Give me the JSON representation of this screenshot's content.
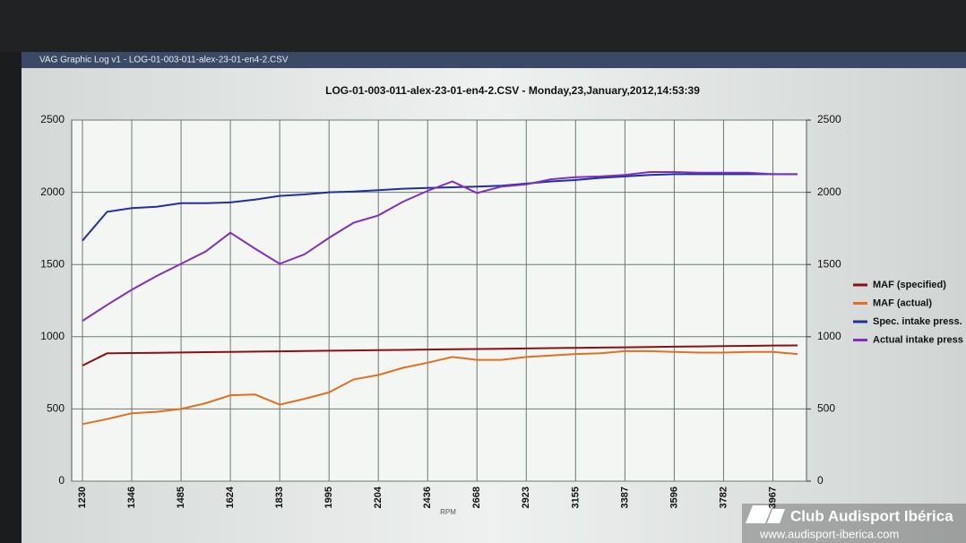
{
  "window_title": "VAG Graphic Log  v1 -  LOG-01-003-011-alex-23-01-en4-2.CSV",
  "watermark": [
    "Club Audisport Ibérica",
    "www.audisport-iberica.com"
  ],
  "chart_data": {
    "type": "line",
    "title": "LOG-01-003-011-alex-23-01-en4-2.CSV - Monday,23,January,2012,14:53:39",
    "x_label": "RPM",
    "categories": [
      "1230",
      null,
      "1346",
      null,
      "1485",
      null,
      "1624",
      null,
      "1833",
      null,
      "1995",
      null,
      "2204",
      null,
      "2436",
      null,
      "2668",
      null,
      "2923",
      null,
      "3155",
      null,
      "3387",
      null,
      "3596",
      null,
      "3782",
      null,
      "3967",
      null
    ],
    "series": [
      {
        "name": "MAF (specified)",
        "color": "#8b1010",
        "values": [
          800,
          885,
          887,
          889,
          891,
          893,
          895,
          897,
          899,
          901,
          903,
          905,
          907,
          909,
          911,
          913,
          915,
          917,
          919,
          921,
          923,
          925,
          927,
          929,
          931,
          933,
          935,
          937,
          939,
          940
        ]
      },
      {
        "name": "MAF (actual)",
        "color": "#e07020",
        "values": [
          395,
          430,
          470,
          480,
          500,
          540,
          595,
          600,
          530,
          570,
          615,
          705,
          735,
          785,
          820,
          860,
          840,
          840,
          860,
          870,
          880,
          885,
          900,
          900,
          895,
          890,
          890,
          895,
          895,
          880
        ]
      },
      {
        "name": "Spec. intake press.",
        "color": "#2030a0",
        "values": [
          1665,
          1865,
          1890,
          1900,
          1925,
          1925,
          1930,
          1950,
          1975,
          1985,
          2000,
          2005,
          2015,
          2025,
          2030,
          2035,
          2040,
          2045,
          2060,
          2075,
          2085,
          2100,
          2110,
          2120,
          2125,
          2125,
          2125,
          2125,
          2125,
          2125
        ]
      },
      {
        "name": "Actual intake press",
        "color": "#8030c0",
        "values": [
          1110,
          1220,
          1325,
          1420,
          1505,
          1590,
          1720,
          1610,
          1505,
          1570,
          1685,
          1790,
          1840,
          1935,
          2010,
          2075,
          1995,
          2040,
          2055,
          2090,
          2105,
          2110,
          2120,
          2140,
          2140,
          2135,
          2135,
          2135,
          2125,
          2125
        ]
      }
    ],
    "ylim": [
      0,
      2500
    ],
    "yticks": [
      0,
      500,
      1000,
      1500,
      2000,
      2500
    ],
    "y2lim": [
      0,
      2500
    ],
    "y2ticks": [
      0,
      500,
      1000,
      1500,
      2000,
      2500
    ],
    "grid": true,
    "legend": "right"
  }
}
